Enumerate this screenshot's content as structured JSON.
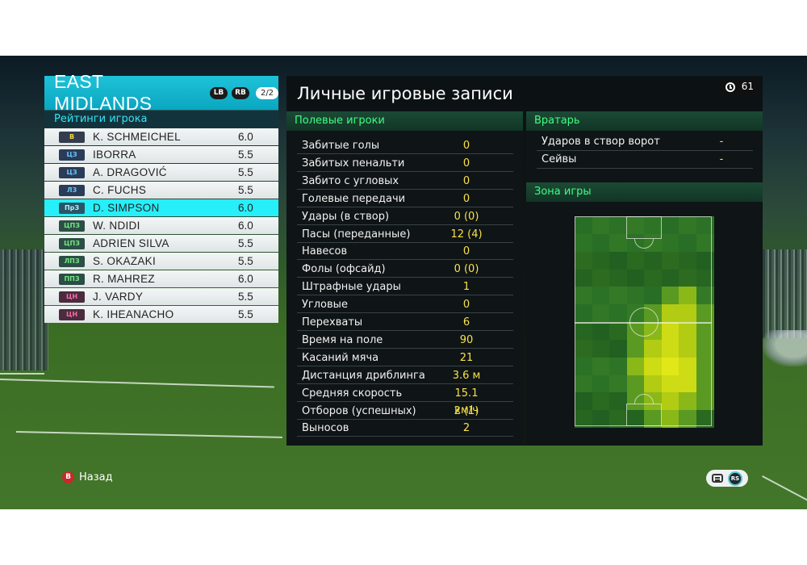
{
  "team": {
    "name": "EAST MIDLANDS",
    "lb": "LB",
    "rb": "RB",
    "page": "2/2",
    "ratings_title": "Рейтинги игрока",
    "players": [
      {
        "pos": "В",
        "pos_type": "gk",
        "name": "K. SCHMEICHEL",
        "rating": "6.0"
      },
      {
        "pos": "ЦЗ",
        "pos_type": "def",
        "name": "IBORRA",
        "rating": "5.5"
      },
      {
        "pos": "ЦЗ",
        "pos_type": "def",
        "name": "A. DRAGOVIĆ",
        "rating": "5.5"
      },
      {
        "pos": "ЛЗ",
        "pos_type": "def",
        "name": "C. FUCHS",
        "rating": "5.5"
      },
      {
        "pos": "ПрЗ",
        "pos_type": "def",
        "name": "D. SIMPSON",
        "rating": "6.0",
        "selected": true
      },
      {
        "pos": "ЦПЗ",
        "pos_type": "mid",
        "name": "W. NDIDI",
        "rating": "6.0"
      },
      {
        "pos": "ЦПЗ",
        "pos_type": "mid",
        "name": "ADRIEN SILVA",
        "rating": "5.5"
      },
      {
        "pos": "ЛПЗ",
        "pos_type": "mid",
        "name": "S. OKAZAKI",
        "rating": "5.5"
      },
      {
        "pos": "ППЗ",
        "pos_type": "mid",
        "name": "R. MAHREZ",
        "rating": "6.0"
      },
      {
        "pos": "ЦН",
        "pos_type": "fwd",
        "name": "J. VARDY",
        "rating": "5.5"
      },
      {
        "pos": "ЦН",
        "pos_type": "fwd",
        "name": "K. IHEANACHO",
        "rating": "5.5"
      }
    ]
  },
  "panel": {
    "title": "Личные игровые записи",
    "timer": "61",
    "field_title": "Полевые игроки",
    "gk_title": "Вратарь",
    "zone_title": "Зона игры"
  },
  "field_stats": [
    {
      "label": "Забитые голы",
      "value": "0"
    },
    {
      "label": "Забитых пенальти",
      "value": "0"
    },
    {
      "label": "Забито с угловых",
      "value": "0"
    },
    {
      "label": "Голевые передачи",
      "value": "0"
    },
    {
      "label": "Удары (в створ)",
      "value": "0 (0)"
    },
    {
      "label": "Пасы (переданные)",
      "value": "12 (4)"
    },
    {
      "label": "Навесов",
      "value": "0"
    },
    {
      "label": "Фолы (офсайд)",
      "value": "0 (0)"
    },
    {
      "label": "Штрафные удары",
      "value": "1"
    },
    {
      "label": "Угловые",
      "value": "0"
    },
    {
      "label": "Перехваты",
      "value": "6"
    },
    {
      "label": "Время на поле",
      "value": "90"
    },
    {
      "label": "Касаний мяча",
      "value": "21"
    },
    {
      "label": "Дистанция дриблинга",
      "value": "3.6 м"
    },
    {
      "label": "Средняя скорость",
      "value": "15.1 км/ч"
    },
    {
      "label": "Отборов (успешных)",
      "value": "2 (1)"
    },
    {
      "label": "Выносов",
      "value": "2"
    }
  ],
  "gk_stats": [
    {
      "label": "Ударов в створ ворот",
      "value": "-"
    },
    {
      "label": "Сейвы",
      "value": "-"
    }
  ],
  "heatmap": {
    "cols": 8,
    "rows": 12,
    "intensity": [
      [
        0,
        0,
        0,
        0,
        0,
        0,
        0,
        0
      ],
      [
        0,
        0,
        0,
        0,
        0,
        0,
        0,
        0
      ],
      [
        0,
        0,
        0,
        0,
        0,
        0,
        0,
        0
      ],
      [
        0,
        0,
        0,
        0,
        0,
        0,
        0,
        0
      ],
      [
        0,
        0,
        0,
        0,
        0,
        1,
        2,
        0
      ],
      [
        0,
        0,
        0,
        0,
        1,
        3,
        3,
        1
      ],
      [
        0,
        0,
        0,
        1,
        2,
        4,
        3,
        1
      ],
      [
        0,
        0,
        0,
        1,
        3,
        4,
        3,
        1
      ],
      [
        0,
        0,
        0,
        2,
        4,
        5,
        4,
        1
      ],
      [
        0,
        0,
        0,
        1,
        3,
        4,
        4,
        1
      ],
      [
        0,
        0,
        0,
        1,
        2,
        3,
        2,
        1
      ],
      [
        0,
        0,
        0,
        0,
        1,
        2,
        1,
        0
      ]
    ]
  },
  "footer": {
    "back_button": "B",
    "back_label": "Назад",
    "rs_label": "RS"
  },
  "colors": {
    "accent": "#1ec3d8",
    "selected_row": "#26eff9",
    "stat_value": "#f7e24a",
    "section_title": "#3dff82"
  }
}
